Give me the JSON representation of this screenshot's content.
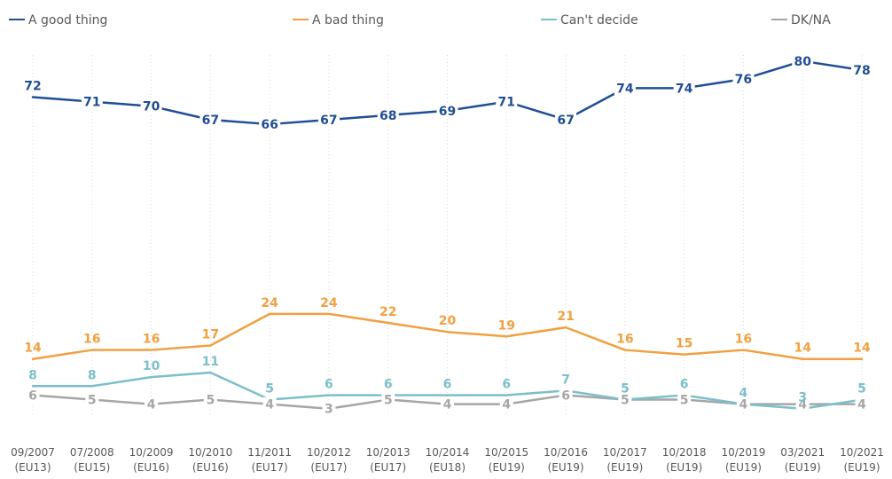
{
  "chart_data": {
    "type": "line",
    "title": "",
    "xlabel": "",
    "ylabel": "",
    "ylim": [
      0,
      90
    ],
    "grid": "vertical dotted",
    "legend_position": "top",
    "categories": [
      [
        "09/2007",
        "(EU13)"
      ],
      [
        "07/2008",
        "(EU15)"
      ],
      [
        "10/2009",
        "(EU16)"
      ],
      [
        "10/2010",
        "(EU16)"
      ],
      [
        "11/2011",
        "(EU17)"
      ],
      [
        "10/2012",
        "(EU17)"
      ],
      [
        "10/2013",
        "(EU17)"
      ],
      [
        "10/2014",
        "(EU18)"
      ],
      [
        "10/2015",
        "(EU19)"
      ],
      [
        "10/2016",
        "(EU19)"
      ],
      [
        "10/2017",
        "(EU19)"
      ],
      [
        "10/2018",
        "(EU19)"
      ],
      [
        "10/2019",
        "(EU19)"
      ],
      [
        "03/2021",
        "(EU19)"
      ],
      [
        "10/2021",
        "(EU19)"
      ]
    ],
    "series": [
      {
        "name": "A good thing",
        "color": "#1f4e96",
        "values": [
          72,
          71,
          70,
          67,
          66,
          67,
          68,
          69,
          71,
          67,
          74,
          74,
          76,
          80,
          78
        ]
      },
      {
        "name": "A bad thing",
        "color": "#f0a040",
        "values": [
          14,
          16,
          16,
          17,
          24,
          24,
          22,
          20,
          19,
          21,
          16,
          15,
          16,
          14,
          14
        ]
      },
      {
        "name": "Can't decide",
        "color": "#7cbfca",
        "values": [
          8,
          8,
          10,
          11,
          5,
          6,
          6,
          6,
          6,
          7,
          5,
          6,
          4,
          3,
          5
        ]
      },
      {
        "name": "DK/NA",
        "color": "#a6a6a6",
        "values": [
          6,
          5,
          4,
          5,
          4,
          3,
          5,
          4,
          4,
          6,
          5,
          5,
          4,
          4,
          4
        ]
      }
    ]
  }
}
